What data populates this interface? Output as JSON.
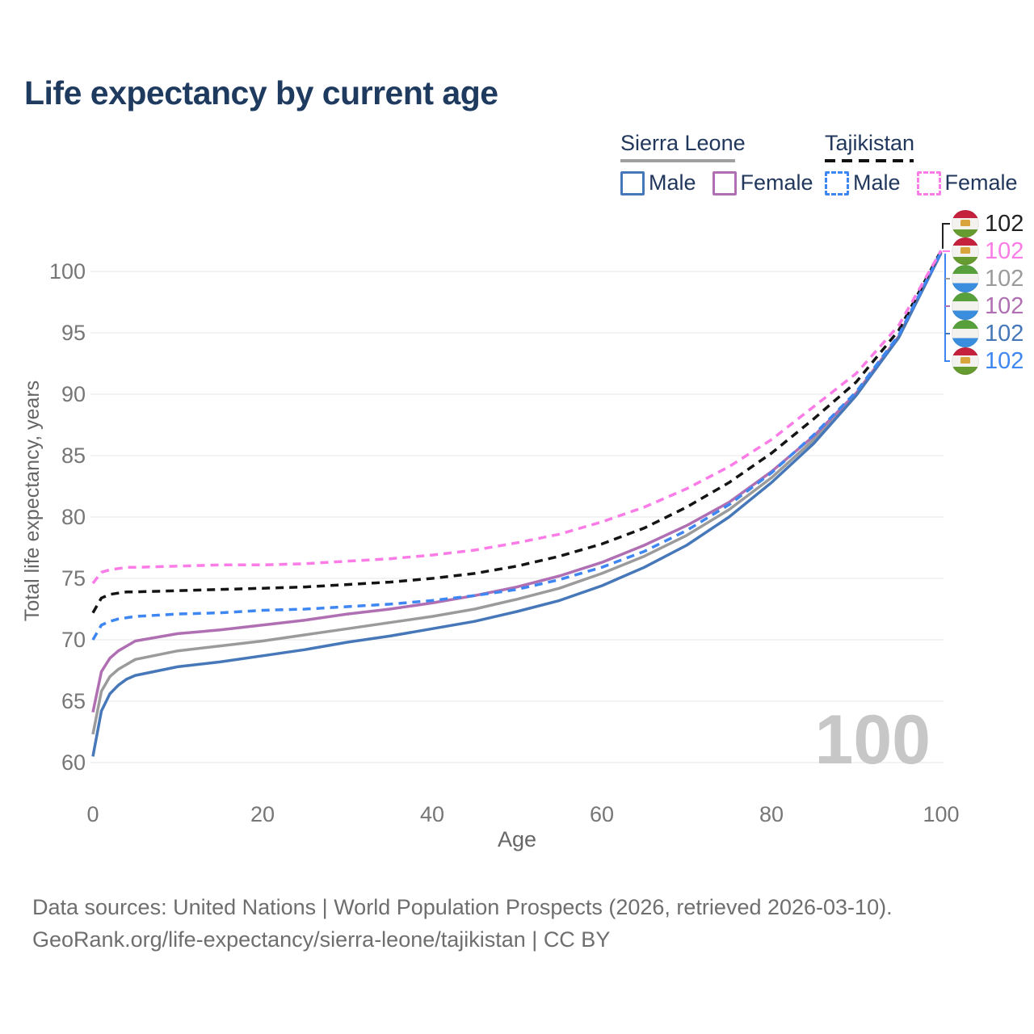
{
  "title": "Life expectancy by current age",
  "colors": {
    "navy": "#1e3a5f",
    "tick": "#767676",
    "axis_label": "#666666",
    "grid": "#ececec",
    "watermark": "#c7c7c7",
    "source": "#6e6e6e"
  },
  "legend": {
    "groups": [
      {
        "name": "Sierra Leone",
        "line_style": "solid",
        "line_color": "#a0a0a0",
        "items": [
          {
            "label": "Male",
            "color": "#4678b9",
            "dashed": false
          },
          {
            "label": "Female",
            "color": "#b06fb2",
            "dashed": false
          }
        ]
      },
      {
        "name": "Tajikistan",
        "line_style": "dashed",
        "line_color": "#141414",
        "items": [
          {
            "label": "Male",
            "color": "#3e86f2",
            "dashed": true
          },
          {
            "label": "Female",
            "color": "#fb7be7",
            "dashed": true
          }
        ]
      }
    ]
  },
  "chart_data": {
    "type": "line",
    "title": "Life expectancy by current age",
    "xlabel": "Age",
    "ylabel": "Total life expectancy, years",
    "xlim": [
      0,
      100
    ],
    "ylim": [
      60,
      102
    ],
    "xticks": [
      0,
      20,
      40,
      60,
      80,
      100
    ],
    "yticks": [
      60,
      65,
      70,
      75,
      80,
      85,
      90,
      95,
      100
    ],
    "grid": "horizontal",
    "legend_position": "top-right",
    "x": [
      0,
      1,
      2,
      3,
      4,
      5,
      10,
      15,
      20,
      25,
      30,
      35,
      40,
      45,
      50,
      55,
      60,
      65,
      70,
      75,
      80,
      85,
      90,
      95,
      100
    ],
    "series": [
      {
        "id": "sierra-leone-total",
        "name": "Sierra Leone (both sexes)",
        "color": "#9b9b9b",
        "dashed": false,
        "values": [
          62.3,
          65.8,
          67.0,
          67.6,
          68.0,
          68.4,
          69.1,
          69.5,
          69.9,
          70.4,
          70.9,
          71.4,
          71.9,
          72.5,
          73.3,
          74.2,
          75.4,
          76.8,
          78.5,
          80.6,
          83.2,
          86.3,
          90.0,
          94.7,
          101.6
        ]
      },
      {
        "id": "sierra-leone-female",
        "name": "Sierra Leone Female",
        "color": "#b06fb2",
        "dashed": false,
        "values": [
          64.1,
          67.4,
          68.5,
          69.1,
          69.5,
          69.9,
          70.5,
          70.8,
          71.2,
          71.6,
          72.1,
          72.5,
          73.0,
          73.6,
          74.3,
          75.2,
          76.3,
          77.7,
          79.3,
          81.2,
          83.7,
          86.6,
          90.1,
          94.7,
          101.6
        ]
      },
      {
        "id": "sierra-leone-male",
        "name": "Sierra Leone Male",
        "color": "#4678b9",
        "dashed": false,
        "values": [
          60.5,
          64.2,
          65.6,
          66.3,
          66.8,
          67.1,
          67.8,
          68.2,
          68.7,
          69.2,
          69.8,
          70.3,
          70.9,
          71.5,
          72.3,
          73.2,
          74.4,
          75.9,
          77.7,
          80.0,
          82.8,
          86.0,
          89.9,
          94.6,
          101.5
        ]
      },
      {
        "id": "tajikistan-total",
        "name": "Tajikistan (both sexes)",
        "color": "#141414",
        "dashed": true,
        "values": [
          72.2,
          73.4,
          73.7,
          73.8,
          73.9,
          73.9,
          74.0,
          74.1,
          74.2,
          74.3,
          74.5,
          74.7,
          75.0,
          75.4,
          76.0,
          76.8,
          77.8,
          79.1,
          80.8,
          82.8,
          85.2,
          88.0,
          91.0,
          95.2,
          101.7
        ]
      },
      {
        "id": "tajikistan-male",
        "name": "Tajikistan Male",
        "color": "#3e86f2",
        "dashed": true,
        "values": [
          70.0,
          71.2,
          71.5,
          71.7,
          71.8,
          71.9,
          72.1,
          72.2,
          72.4,
          72.5,
          72.7,
          72.9,
          73.2,
          73.6,
          74.1,
          74.9,
          75.9,
          77.2,
          78.9,
          81.0,
          83.6,
          86.7,
          90.2,
          94.8,
          101.6
        ]
      },
      {
        "id": "tajikistan-female",
        "name": "Tajikistan Female",
        "color": "#fb7be7",
        "dashed": true,
        "values": [
          74.6,
          75.5,
          75.7,
          75.8,
          75.9,
          75.9,
          76.0,
          76.1,
          76.1,
          76.2,
          76.4,
          76.6,
          76.9,
          77.3,
          77.9,
          78.6,
          79.6,
          80.8,
          82.3,
          84.1,
          86.3,
          89.0,
          91.7,
          95.6,
          101.7
        ]
      }
    ]
  },
  "right_labels": [
    {
      "value": "102",
      "color": "#222222",
      "flag": "tajikistan",
      "series": "tajikistan-total"
    },
    {
      "value": "102",
      "color": "#fb7be7",
      "flag": "tajikistan",
      "series": "tajikistan-female"
    },
    {
      "value": "102",
      "color": "#9b9b9b",
      "flag": "sierra-leone",
      "series": "sierra-leone-total"
    },
    {
      "value": "102",
      "color": "#b06fb2",
      "flag": "sierra-leone",
      "series": "sierra-leone-female"
    },
    {
      "value": "102",
      "color": "#4678b9",
      "flag": "sierra-leone",
      "series": "sierra-leone-male"
    },
    {
      "value": "102",
      "color": "#3e86f2",
      "flag": "tajikistan",
      "series": "tajikistan-male"
    }
  ],
  "watermark": "100",
  "sources": [
    "Data sources: United Nations | World Population Prospects (2026, retrieved 2026-03-10).",
    "GeoRank.org/life-expectancy/sierra-leone/tajikistan | CC BY"
  ]
}
